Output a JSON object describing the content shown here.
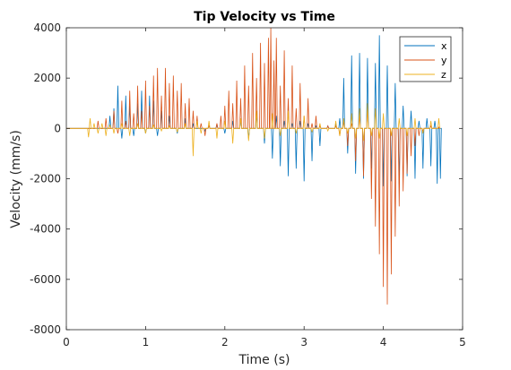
{
  "chart_data": {
    "type": "line",
    "title": "Tip Velocity vs Time",
    "xlabel": "Time (s)",
    "ylabel": "Velocity (mm/s)",
    "xlim": [
      0,
      5
    ],
    "ylim": [
      -8000,
      4000
    ],
    "xticks": [
      0,
      1,
      2,
      3,
      4,
      5
    ],
    "xtick_labels": [
      "0",
      "1",
      "2",
      "3",
      "4",
      "5"
    ],
    "yticks": [
      -8000,
      -6000,
      -4000,
      -2000,
      0,
      2000,
      4000
    ],
    "ytick_labels": [
      "-8000",
      "-6000",
      "-4000",
      "-2000",
      "0",
      "2000",
      "4000"
    ],
    "grid": false,
    "legend": {
      "location": "top-right"
    },
    "series": [
      {
        "name": "x",
        "color": "#0072BD",
        "peaks": [
          [
            0.55,
            500
          ],
          [
            0.6,
            800
          ],
          [
            0.65,
            1700
          ],
          [
            0.7,
            -400
          ],
          [
            0.75,
            1300
          ],
          [
            0.8,
            900
          ],
          [
            0.85,
            -300
          ],
          [
            0.9,
            1000
          ],
          [
            0.95,
            1500
          ],
          [
            1.0,
            -200
          ],
          [
            1.05,
            1300
          ],
          [
            1.1,
            1100
          ],
          [
            1.15,
            -300
          ],
          [
            1.2,
            700
          ],
          [
            1.3,
            500
          ],
          [
            1.4,
            -200
          ],
          [
            1.5,
            400
          ],
          [
            1.6,
            200
          ],
          [
            1.75,
            -100
          ],
          [
            1.8,
            100
          ],
          [
            1.9,
            150
          ],
          [
            2.0,
            -200
          ],
          [
            2.1,
            300
          ],
          [
            2.2,
            400
          ],
          [
            2.3,
            -400
          ],
          [
            2.4,
            600
          ],
          [
            2.5,
            -600
          ],
          [
            2.6,
            -1200
          ],
          [
            2.65,
            500
          ],
          [
            2.7,
            -1500
          ],
          [
            2.75,
            300
          ],
          [
            2.8,
            -1900
          ],
          [
            2.85,
            200
          ],
          [
            2.9,
            -1600
          ],
          [
            2.95,
            300
          ],
          [
            3.0,
            -2100
          ],
          [
            3.05,
            200
          ],
          [
            3.1,
            -1300
          ],
          [
            3.15,
            100
          ],
          [
            3.2,
            -700
          ],
          [
            3.3,
            100
          ],
          [
            3.4,
            200
          ],
          [
            3.45,
            400
          ],
          [
            3.5,
            2000
          ],
          [
            3.55,
            -1000
          ],
          [
            3.6,
            2900
          ],
          [
            3.65,
            -1800
          ],
          [
            3.7,
            3000
          ],
          [
            3.75,
            -2000
          ],
          [
            3.8,
            2800
          ],
          [
            3.85,
            -1600
          ],
          [
            3.9,
            2600
          ],
          [
            3.95,
            3700
          ],
          [
            4.0,
            -2300
          ],
          [
            4.05,
            2500
          ],
          [
            4.1,
            -2100
          ],
          [
            4.15,
            1800
          ],
          [
            4.2,
            -2200
          ],
          [
            4.25,
            900
          ],
          [
            4.3,
            -1900
          ],
          [
            4.35,
            700
          ],
          [
            4.4,
            -2000
          ],
          [
            4.45,
            300
          ],
          [
            4.5,
            -1600
          ],
          [
            4.55,
            400
          ],
          [
            4.6,
            -1500
          ],
          [
            4.65,
            300
          ],
          [
            4.68,
            -2200
          ],
          [
            4.72,
            -2000
          ]
        ]
      },
      {
        "name": "y",
        "color": "#D95319",
        "peaks": [
          [
            0.4,
            300
          ],
          [
            0.5,
            400
          ],
          [
            0.6,
            700
          ],
          [
            0.65,
            -200
          ],
          [
            0.7,
            1100
          ],
          [
            0.75,
            300
          ],
          [
            0.8,
            1500
          ],
          [
            0.85,
            600
          ],
          [
            0.9,
            1700
          ],
          [
            0.95,
            700
          ],
          [
            1.0,
            1900
          ],
          [
            1.05,
            900
          ],
          [
            1.1,
            2100
          ],
          [
            1.15,
            2400
          ],
          [
            1.2,
            1300
          ],
          [
            1.25,
            2400
          ],
          [
            1.3,
            1800
          ],
          [
            1.35,
            2100
          ],
          [
            1.4,
            1500
          ],
          [
            1.45,
            1800
          ],
          [
            1.5,
            1000
          ],
          [
            1.55,
            1200
          ],
          [
            1.6,
            700
          ],
          [
            1.65,
            500
          ],
          [
            1.7,
            200
          ],
          [
            1.75,
            -300
          ],
          [
            1.8,
            100
          ],
          [
            1.9,
            200
          ],
          [
            1.95,
            500
          ],
          [
            2.0,
            900
          ],
          [
            2.05,
            1500
          ],
          [
            2.1,
            1000
          ],
          [
            2.15,
            1900
          ],
          [
            2.2,
            1200
          ],
          [
            2.25,
            2500
          ],
          [
            2.3,
            1700
          ],
          [
            2.35,
            3000
          ],
          [
            2.4,
            2000
          ],
          [
            2.45,
            3400
          ],
          [
            2.5,
            2600
          ],
          [
            2.55,
            3600
          ],
          [
            2.58,
            4000
          ],
          [
            2.62,
            2700
          ],
          [
            2.65,
            3600
          ],
          [
            2.7,
            1700
          ],
          [
            2.75,
            3100
          ],
          [
            2.8,
            1200
          ],
          [
            2.85,
            2500
          ],
          [
            2.9,
            800
          ],
          [
            2.95,
            1800
          ],
          [
            3.0,
            500
          ],
          [
            3.05,
            1200
          ],
          [
            3.1,
            200
          ],
          [
            3.15,
            500
          ],
          [
            3.2,
            100
          ],
          [
            3.3,
            100
          ],
          [
            3.4,
            100
          ],
          [
            3.45,
            -300
          ],
          [
            3.5,
            300
          ],
          [
            3.55,
            -700
          ],
          [
            3.6,
            200
          ],
          [
            3.65,
            -1300
          ],
          [
            3.7,
            500
          ],
          [
            3.75,
            -1900
          ],
          [
            3.8,
            800
          ],
          [
            3.85,
            -2800
          ],
          [
            3.9,
            -3900
          ],
          [
            3.95,
            -5000
          ],
          [
            4.0,
            -6300
          ],
          [
            4.05,
            -7000
          ],
          [
            4.1,
            -5800
          ],
          [
            4.15,
            -4300
          ],
          [
            4.2,
            -3100
          ],
          [
            4.25,
            -2500
          ],
          [
            4.3,
            -1800
          ],
          [
            4.35,
            -1100
          ],
          [
            4.4,
            -700
          ],
          [
            4.45,
            -300
          ],
          [
            4.5,
            -100
          ],
          [
            4.6,
            100
          ],
          [
            4.7,
            50
          ]
        ]
      },
      {
        "name": "z",
        "color": "#EDB120",
        "peaks": [
          [
            0.28,
            -350
          ],
          [
            0.3,
            400
          ],
          [
            0.35,
            200
          ],
          [
            0.4,
            -200
          ],
          [
            0.45,
            200
          ],
          [
            0.5,
            -300
          ],
          [
            0.55,
            150
          ],
          [
            0.6,
            -200
          ],
          [
            0.7,
            200
          ],
          [
            0.8,
            -300
          ],
          [
            0.9,
            200
          ],
          [
            1.0,
            -200
          ],
          [
            1.1,
            150
          ],
          [
            1.2,
            -100
          ],
          [
            1.3,
            100
          ],
          [
            1.4,
            -150
          ],
          [
            1.5,
            200
          ],
          [
            1.6,
            -1100
          ],
          [
            1.65,
            300
          ],
          [
            1.7,
            -200
          ],
          [
            1.8,
            300
          ],
          [
            1.9,
            -400
          ],
          [
            2.0,
            300
          ],
          [
            2.1,
            -600
          ],
          [
            2.2,
            400
          ],
          [
            2.3,
            -500
          ],
          [
            2.4,
            700
          ],
          [
            2.5,
            -400
          ],
          [
            2.6,
            600
          ],
          [
            2.7,
            -300
          ],
          [
            2.8,
            700
          ],
          [
            2.9,
            -200
          ],
          [
            3.0,
            500
          ],
          [
            3.1,
            -150
          ],
          [
            3.2,
            200
          ],
          [
            3.3,
            -100
          ],
          [
            3.4,
            300
          ],
          [
            3.45,
            -300
          ],
          [
            3.5,
            400
          ],
          [
            3.55,
            -200
          ],
          [
            3.6,
            600
          ],
          [
            3.65,
            -400
          ],
          [
            3.7,
            800
          ],
          [
            3.75,
            -500
          ],
          [
            3.8,
            1000
          ],
          [
            3.85,
            -300
          ],
          [
            3.9,
            800
          ],
          [
            3.95,
            -400
          ],
          [
            4.0,
            600
          ],
          [
            4.1,
            -300
          ],
          [
            4.2,
            400
          ],
          [
            4.3,
            -300
          ],
          [
            4.4,
            400
          ],
          [
            4.5,
            -200
          ],
          [
            4.6,
            300
          ],
          [
            4.7,
            400
          ]
        ]
      }
    ]
  }
}
